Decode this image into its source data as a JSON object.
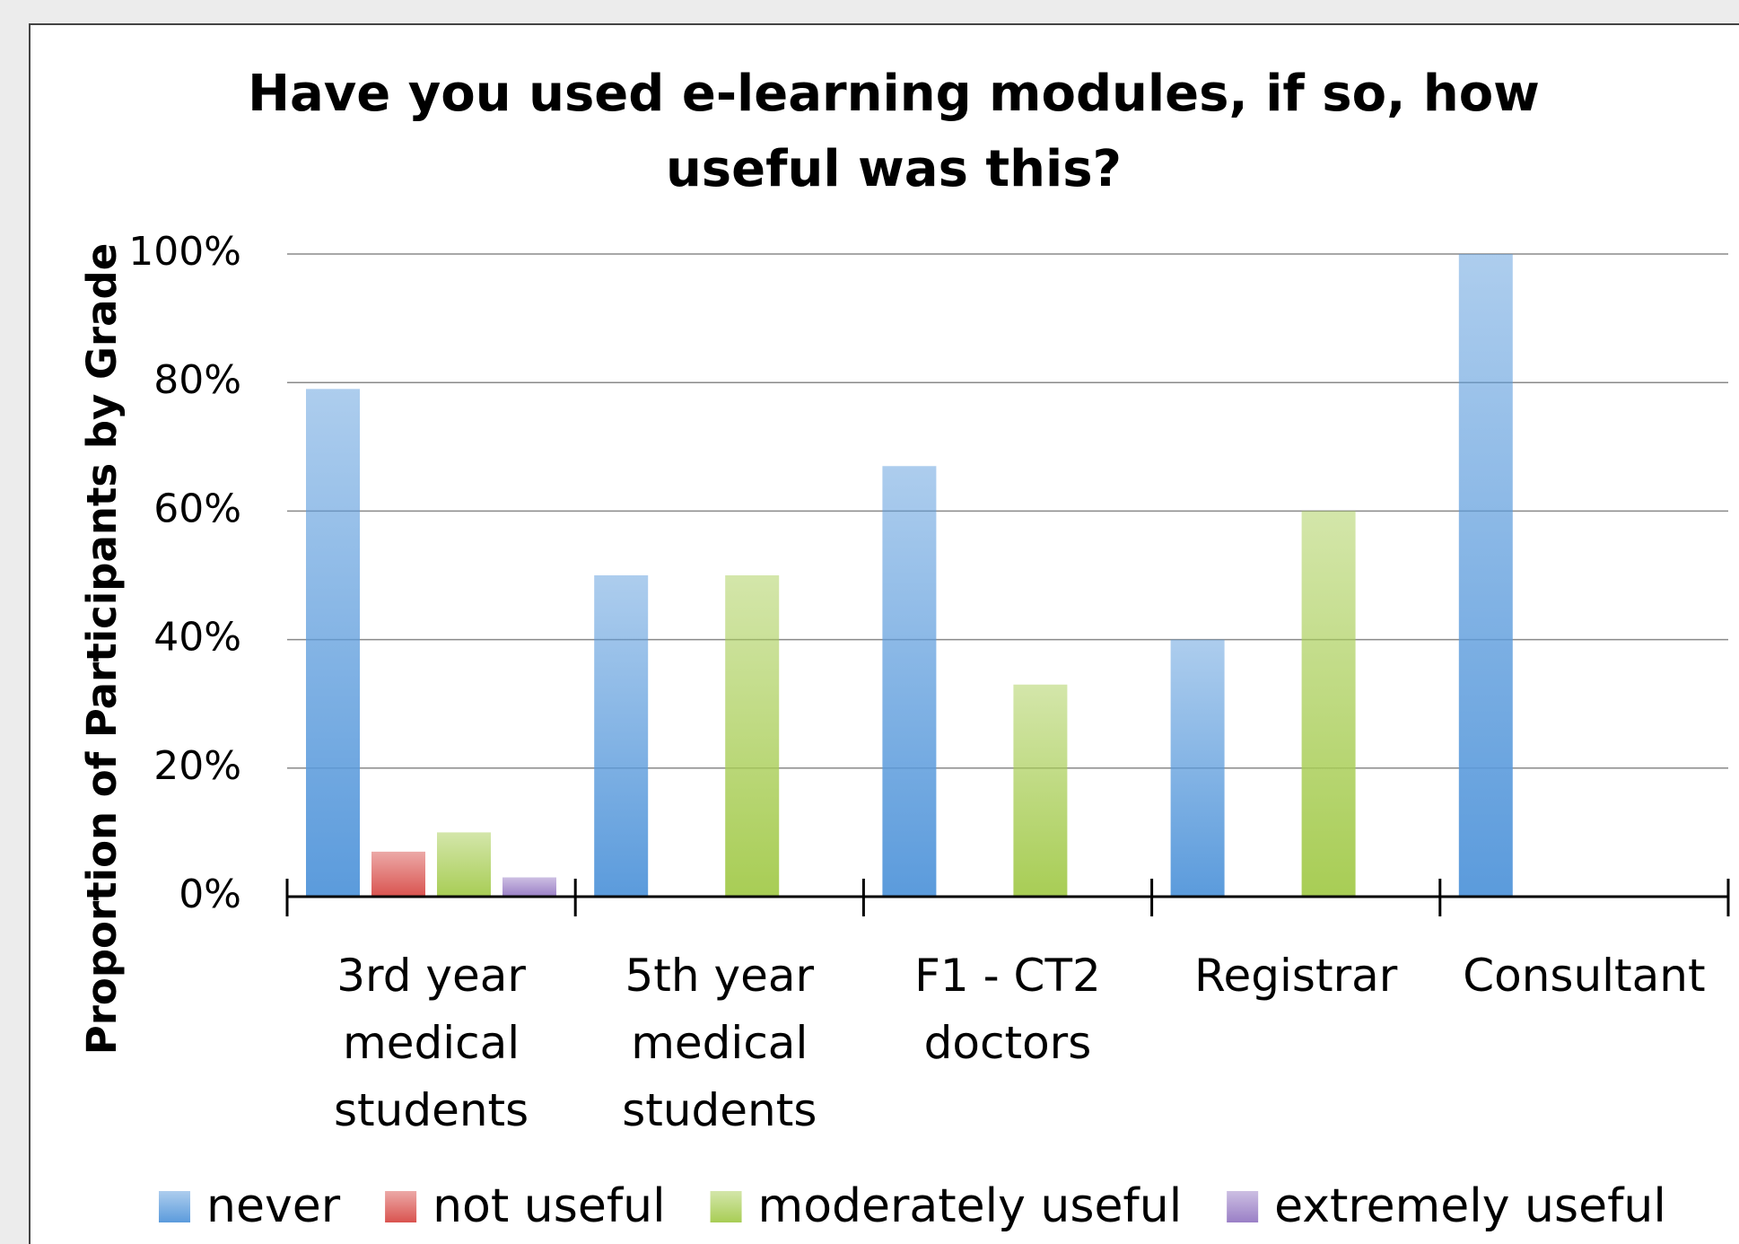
{
  "chart_data": {
    "type": "bar",
    "title": "Have you used e-learning modules, if so, how useful was this?",
    "ylabel": "Proportion of Participants by Grade",
    "categories": [
      "3rd year medical students",
      "5th year medical students",
      "F1 - CT2 doctors",
      "Registrar",
      "Consultant"
    ],
    "series": [
      {
        "name": "never",
        "color": "#5b9bdc",
        "values": [
          79,
          50,
          67,
          40,
          100
        ]
      },
      {
        "name": "not useful",
        "color": "#d9534f",
        "values": [
          7,
          0,
          0,
          0,
          0
        ]
      },
      {
        "name": "moderately useful",
        "color": "#a8cd55",
        "values": [
          10,
          50,
          33,
          60,
          0
        ]
      },
      {
        "name": "extremely useful",
        "color": "#9a7fc6",
        "values": [
          3,
          0,
          0,
          0,
          0
        ]
      }
    ],
    "ylim": [
      0,
      100
    ],
    "yticks": [
      {
        "value": 0,
        "label": "0%"
      },
      {
        "value": 20,
        "label": "20%"
      },
      {
        "value": 40,
        "label": "40%"
      },
      {
        "value": 60,
        "label": "60%"
      },
      {
        "value": 80,
        "label": "80%"
      },
      {
        "value": 100,
        "label": "100%"
      }
    ],
    "grid": true,
    "legend": "bottom"
  }
}
